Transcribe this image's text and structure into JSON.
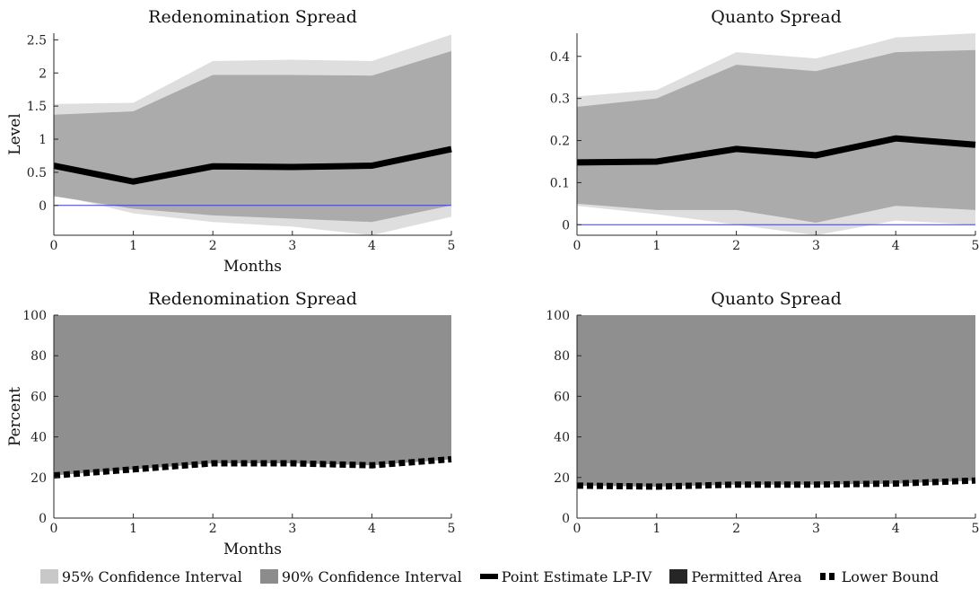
{
  "chart_data": [
    {
      "type": "area",
      "title": "Redenomination Spread",
      "xlabel": "Months",
      "ylabel": "Level",
      "x": [
        0,
        1,
        2,
        3,
        4,
        5
      ],
      "xticks": [
        "0",
        "1",
        "2",
        "3",
        "4",
        "5"
      ],
      "ylim": [
        -0.45,
        2.6
      ],
      "yticks": [
        "0",
        "0.5",
        "1",
        "1.5",
        "2",
        "2.5"
      ],
      "series": [
        {
          "name": "95% Confidence Interval",
          "lower": [
            0.17,
            -0.12,
            -0.25,
            -0.32,
            -0.45,
            -0.17
          ],
          "upper": [
            1.53,
            1.55,
            2.18,
            2.2,
            2.18,
            2.58
          ]
        },
        {
          "name": "90% Confidence Interval",
          "lower": [
            0.14,
            -0.05,
            -0.15,
            -0.2,
            -0.25,
            0.0
          ],
          "upper": [
            1.37,
            1.42,
            1.97,
            1.97,
            1.96,
            2.33
          ]
        },
        {
          "name": "Point Estimate LP-IV",
          "values": [
            0.6,
            0.36,
            0.59,
            0.58,
            0.6,
            0.85
          ]
        }
      ],
      "reference_line": 0
    },
    {
      "type": "area",
      "title": "Quanto Spread",
      "xlabel": "",
      "ylabel": "",
      "x": [
        0,
        1,
        2,
        3,
        4,
        5
      ],
      "xticks": [
        "0",
        "1",
        "2",
        "3",
        "4",
        "5"
      ],
      "ylim": [
        -0.025,
        0.455
      ],
      "yticks": [
        "0",
        "0.1",
        "0.2",
        "0.3",
        "0.4"
      ],
      "series": [
        {
          "name": "95% Confidence Interval",
          "lower": [
            0.045,
            0.025,
            0.0,
            -0.025,
            0.01,
            0.0
          ],
          "upper": [
            0.305,
            0.32,
            0.41,
            0.395,
            0.445,
            0.455
          ]
        },
        {
          "name": "90% Confidence Interval",
          "lower": [
            0.05,
            0.035,
            0.035,
            0.005,
            0.045,
            0.035
          ],
          "upper": [
            0.28,
            0.3,
            0.38,
            0.365,
            0.41,
            0.415
          ]
        },
        {
          "name": "Point Estimate LP-IV",
          "values": [
            0.148,
            0.15,
            0.18,
            0.165,
            0.205,
            0.19
          ]
        }
      ],
      "reference_line": 0
    },
    {
      "type": "area",
      "title": "Redenomination Spread",
      "xlabel": "Months",
      "ylabel": "Percent",
      "x": [
        0,
        1,
        2,
        3,
        4,
        5
      ],
      "xticks": [
        "0",
        "1",
        "2",
        "3",
        "4",
        "5"
      ],
      "ylim": [
        0,
        100
      ],
      "yticks": [
        "0",
        "20",
        "40",
        "60",
        "80",
        "100"
      ],
      "series": [
        {
          "name": "Permitted Area",
          "lower": [
            21,
            24,
            27,
            27,
            26,
            29
          ],
          "upper": [
            100,
            100,
            100,
            100,
            100,
            100
          ]
        },
        {
          "name": "Lower Bound",
          "values": [
            21,
            24,
            27,
            27,
            26,
            29
          ]
        }
      ]
    },
    {
      "type": "area",
      "title": "Quanto Spread",
      "xlabel": "",
      "ylabel": "",
      "x": [
        0,
        1,
        2,
        3,
        4,
        5
      ],
      "xticks": [
        "0",
        "1",
        "2",
        "3",
        "4",
        "5"
      ],
      "ylim": [
        0,
        100
      ],
      "yticks": [
        "0",
        "20",
        "40",
        "60",
        "80",
        "100"
      ],
      "series": [
        {
          "name": "Permitted Area",
          "lower": [
            16,
            15.5,
            16.5,
            16.5,
            17,
            18.5
          ],
          "upper": [
            100,
            100,
            100,
            100,
            100,
            100
          ]
        },
        {
          "name": "Lower Bound",
          "values": [
            16,
            15.5,
            16.5,
            16.5,
            17,
            18.5
          ]
        }
      ]
    }
  ],
  "legend": [
    {
      "label": "95% Confidence Interval",
      "color": "#c8c8c8",
      "kind": "box"
    },
    {
      "label": "90% Confidence Interval",
      "color": "#8c8c8c",
      "kind": "box"
    },
    {
      "label": "Point Estimate LP-IV",
      "color": "#000000",
      "kind": "line"
    },
    {
      "label": "Permitted Area",
      "color": "#262626",
      "kind": "box"
    },
    {
      "label": "Lower Bound",
      "color": "#000000",
      "kind": "dots"
    }
  ],
  "colors": {
    "ci95": "#dedede",
    "ci90": "#ababab",
    "permitted": "#8f8f8f",
    "point": "#000000",
    "zero_line": "#3d3dd6"
  }
}
